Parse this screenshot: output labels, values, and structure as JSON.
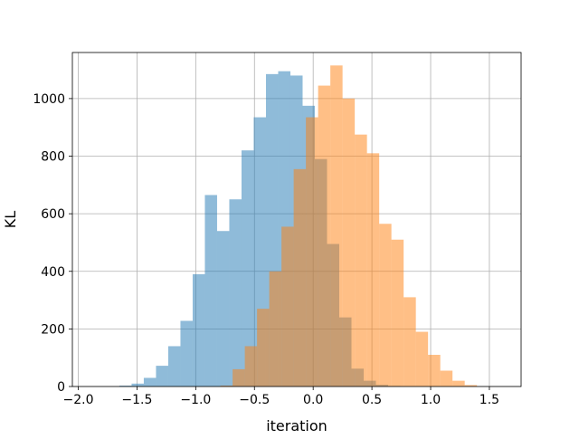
{
  "chart_data": {
    "type": "bar",
    "xlabel": "iteration",
    "ylabel": "KL",
    "xlim": [
      -2.05,
      1.77
    ],
    "ylim": [
      0,
      1160
    ],
    "xticks": [
      "−2.0",
      "−1.5",
      "−1.0",
      "−0.5",
      "0.0",
      "0.5",
      "1.0",
      "1.5"
    ],
    "xtick_values": [
      -2.0,
      -1.5,
      -1.0,
      -0.5,
      0.0,
      0.5,
      1.0,
      1.5
    ],
    "yticks": [
      "0",
      "200",
      "400",
      "600",
      "800",
      "1000"
    ],
    "ytick_values": [
      0,
      200,
      400,
      600,
      800,
      1000
    ],
    "grid": true,
    "bin_width": 0.104,
    "series": [
      {
        "color": "#1f77b4",
        "alpha": 0.5,
        "bin_starts": [
          -1.65,
          -1.546,
          -1.442,
          -1.338,
          -1.234,
          -1.13,
          -1.026,
          -0.922,
          -0.818,
          -0.714,
          -0.61,
          -0.506,
          -0.402,
          -0.298,
          -0.194,
          -0.09,
          0.014,
          0.118,
          0.222,
          0.326,
          0.43,
          0.534,
          0.638
        ],
        "values": [
          3,
          10,
          30,
          72,
          140,
          228,
          390,
          665,
          540,
          650,
          820,
          935,
          1085,
          1095,
          1080,
          975,
          790,
          495,
          240,
          62,
          20,
          6,
          2
        ]
      },
      {
        "color": "#ff7f0e",
        "alpha": 0.5,
        "bin_starts": [
          -0.79,
          -0.686,
          -0.582,
          -0.478,
          -0.374,
          -0.27,
          -0.166,
          -0.062,
          0.042,
          0.146,
          0.25,
          0.354,
          0.458,
          0.562,
          0.666,
          0.77,
          0.874,
          0.978,
          1.082,
          1.186,
          1.29
        ],
        "values": [
          3,
          60,
          140,
          270,
          400,
          555,
          755,
          935,
          1045,
          1115,
          1000,
          875,
          810,
          565,
          510,
          310,
          190,
          110,
          55,
          20,
          5
        ]
      }
    ]
  }
}
